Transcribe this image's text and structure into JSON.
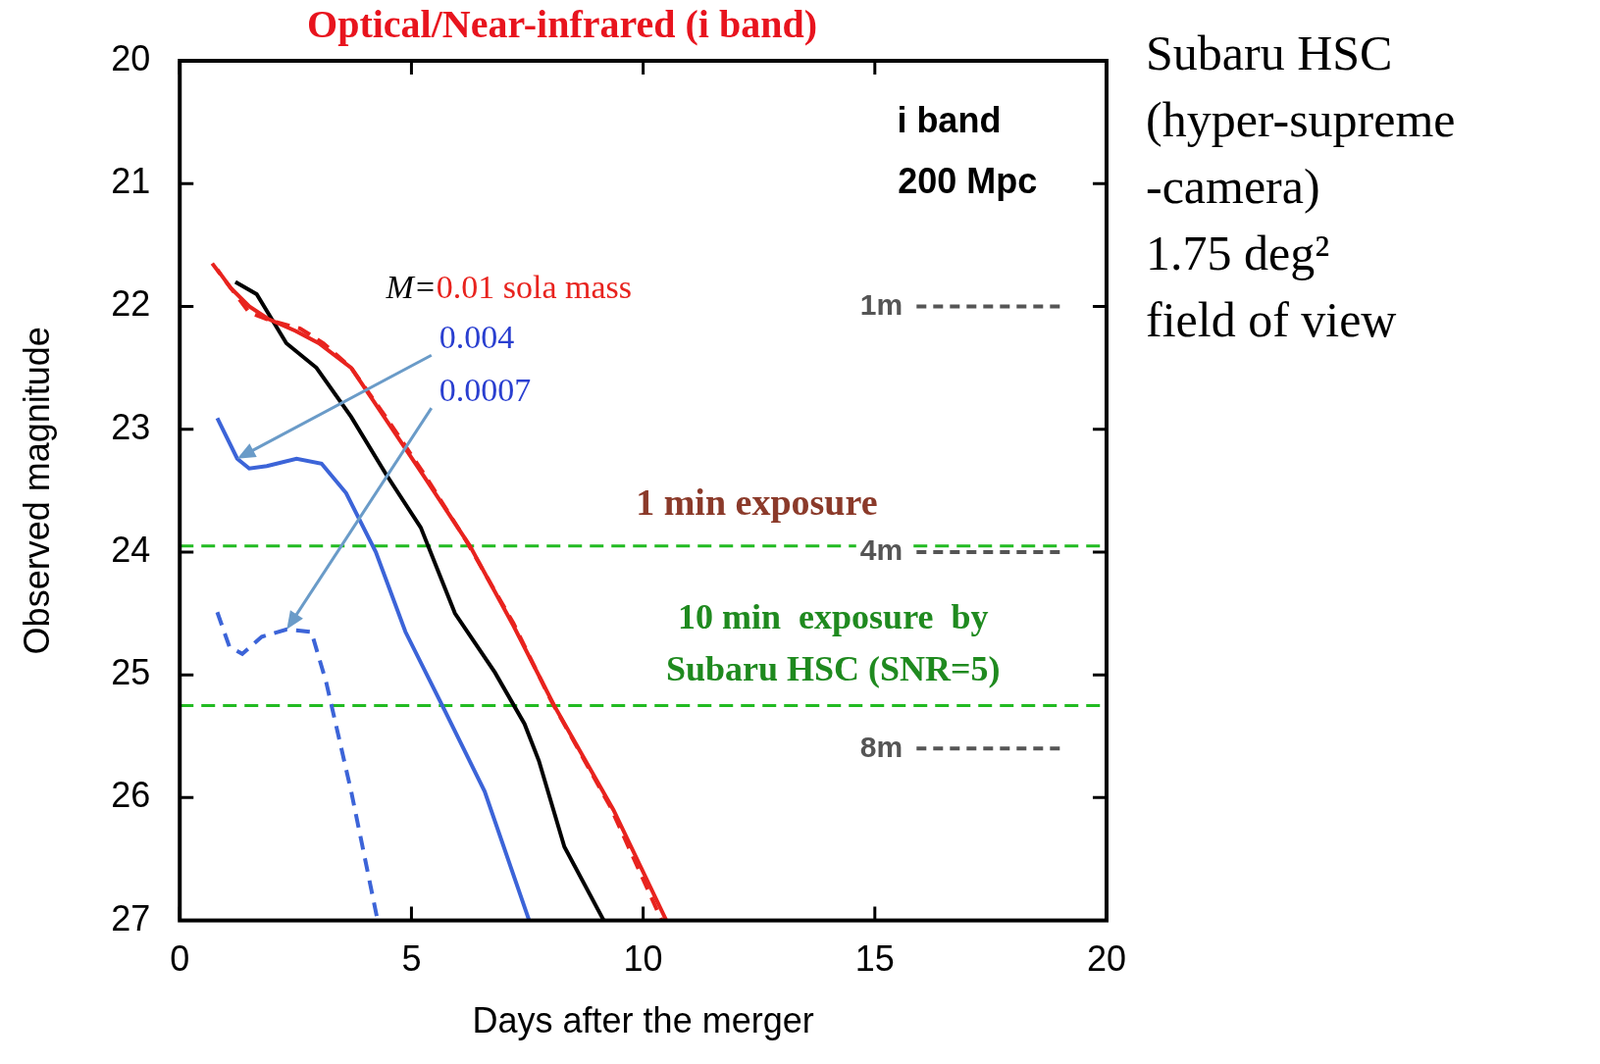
{
  "chart_data": {
    "type": "line",
    "title": "Optical/Near-infrared (i band)",
    "x_label": "Days after the merger",
    "y_label": "Observed magnitude",
    "xlim": [
      0,
      20
    ],
    "xticks": [
      0,
      5,
      10,
      15,
      20
    ],
    "ylim": [
      27,
      20
    ],
    "yticks": [
      20,
      21,
      22,
      23,
      24,
      25,
      26,
      27
    ],
    "grid": false,
    "series": [
      {
        "color": "#e8231e",
        "line_style": "solid",
        "x": [
          0.81,
          1.1,
          1.5,
          1.9,
          2.5,
          3.0,
          3.7,
          4.5,
          5.3,
          6.26,
          7.2,
          8.08,
          9.36,
          10.5
        ],
        "values": [
          21.7,
          21.85,
          22.0,
          22.1,
          22.2,
          22.3,
          22.5,
          22.95,
          23.4,
          23.95,
          24.6,
          25.25,
          26.1,
          27.0
        ]
      },
      {
        "color": "#e8231e",
        "line_style": "dashed",
        "x": [
          0.7,
          1.0,
          1.5,
          2.0,
          2.6,
          3.1,
          3.7,
          4.5,
          5.3,
          6.2,
          7.2,
          8.0,
          9.3,
          10.4
        ],
        "values": [
          21.65,
          21.8,
          22.05,
          22.12,
          22.18,
          22.3,
          22.5,
          22.93,
          23.38,
          23.92,
          24.58,
          25.2,
          26.08,
          27.0
        ]
      },
      {
        "color": "#000000",
        "line_style": "solid",
        "x": [
          1.2,
          1.66,
          2.3,
          2.95,
          3.7,
          4.44,
          5.2,
          5.94,
          6.8,
          7.44,
          7.75,
          8.3,
          9.15
        ],
        "values": [
          21.8,
          21.9,
          22.3,
          22.5,
          22.9,
          23.36,
          23.8,
          24.5,
          24.98,
          25.4,
          25.7,
          26.4,
          27.0
        ]
      },
      {
        "color": "#3c64d8",
        "line_style": "solid",
        "x": [
          0.81,
          1.24,
          1.5,
          1.88,
          2.52,
          3.06,
          3.59,
          4.23,
          4.87,
          5.73,
          6.58,
          7.54
        ],
        "values": [
          22.91,
          23.24,
          23.32,
          23.3,
          23.24,
          23.28,
          23.52,
          24.0,
          24.65,
          25.3,
          25.95,
          27.0
        ]
      },
      {
        "color": "#3c64d8",
        "line_style": "dashed",
        "x": [
          0.81,
          1.07,
          1.35,
          1.77,
          2.31,
          2.84,
          3.16,
          3.7,
          4.27
        ],
        "values": [
          24.49,
          24.77,
          24.83,
          24.69,
          24.63,
          24.65,
          25.06,
          25.95,
          27.0
        ]
      }
    ],
    "reference_lines": [
      {
        "value": 22,
        "label": "1m",
        "color": "#555555",
        "line_style": "dashed"
      },
      {
        "value": 24,
        "label": "4m",
        "color": "#555555",
        "line_style": "dashed"
      },
      {
        "value": 25.6,
        "label": "8m",
        "color": "#555555",
        "line_style": "dashed"
      },
      {
        "value": 23.95,
        "color": "#22bb22",
        "line_style": "dashed"
      },
      {
        "value": 25.25,
        "color": "#22bb22",
        "line_style": "dashed"
      }
    ],
    "annotations": [
      {
        "text": "i band",
        "color": "#000000"
      },
      {
        "text": "200 Mpc",
        "color": "#000000"
      },
      {
        "parts": [
          {
            "text": "M=",
            "color": "#000000"
          },
          {
            "text": "0.01 sola mass",
            "color": "#e8231e"
          }
        ]
      },
      {
        "text": "0.004",
        "color": "#2a3fd0"
      },
      {
        "text": "0.0007",
        "color": "#2a3fd0"
      },
      {
        "text": "1 min exposure",
        "color": "#8b3a2a"
      },
      {
        "lines": [
          "10 min  exposure  by",
          "Subaru HSC (SNR=5)"
        ],
        "color": "#1f8a1f"
      }
    ],
    "side_text": [
      "Subaru HSC",
      "(hyper-supreme",
      "-camera)",
      "1.75 deg²",
      "field  of  view"
    ]
  }
}
